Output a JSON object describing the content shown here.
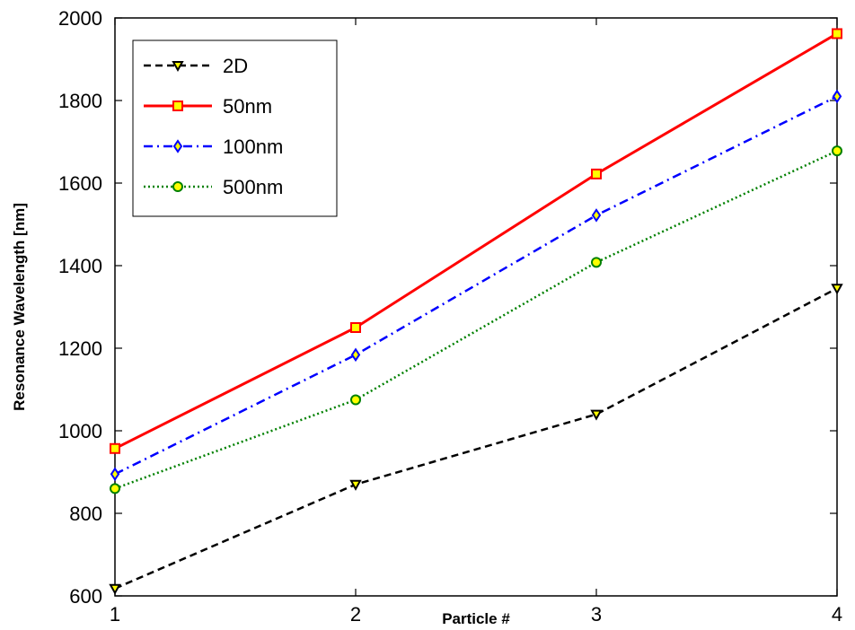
{
  "chart_data": {
    "type": "line",
    "title": "",
    "xlabel": "Particle #",
    "ylabel": "Resonance Wavelength [nm]",
    "x": [
      1,
      2,
      3,
      4
    ],
    "xticks": [
      "1",
      "2",
      "3",
      "4"
    ],
    "xlim": [
      1,
      4
    ],
    "ylim": [
      600,
      2000
    ],
    "yticks": [
      "600",
      "800",
      "1000",
      "1200",
      "1400",
      "1600",
      "1800",
      "2000"
    ],
    "grid": false,
    "legend_position": "top-left",
    "series": [
      {
        "name": "2D",
        "values": [
          618,
          870,
          1040,
          1345
        ],
        "color": "#000000",
        "dash": "dashed",
        "marker": "triangle-down",
        "marker_fill": "#ffff00"
      },
      {
        "name": "50nm",
        "values": [
          957,
          1250,
          1622,
          1962
        ],
        "color": "#ff0000",
        "dash": "solid",
        "marker": "square",
        "marker_fill": "#ffff00"
      },
      {
        "name": "100nm",
        "values": [
          895,
          1184,
          1522,
          1810
        ],
        "color": "#0000ff",
        "dash": "dash-dot",
        "marker": "diamond",
        "marker_fill": "#ffff00"
      },
      {
        "name": "500nm",
        "values": [
          860,
          1075,
          1408,
          1678
        ],
        "color": "#008000",
        "dash": "dotted",
        "marker": "circle",
        "marker_fill": "#ffff00"
      }
    ]
  }
}
